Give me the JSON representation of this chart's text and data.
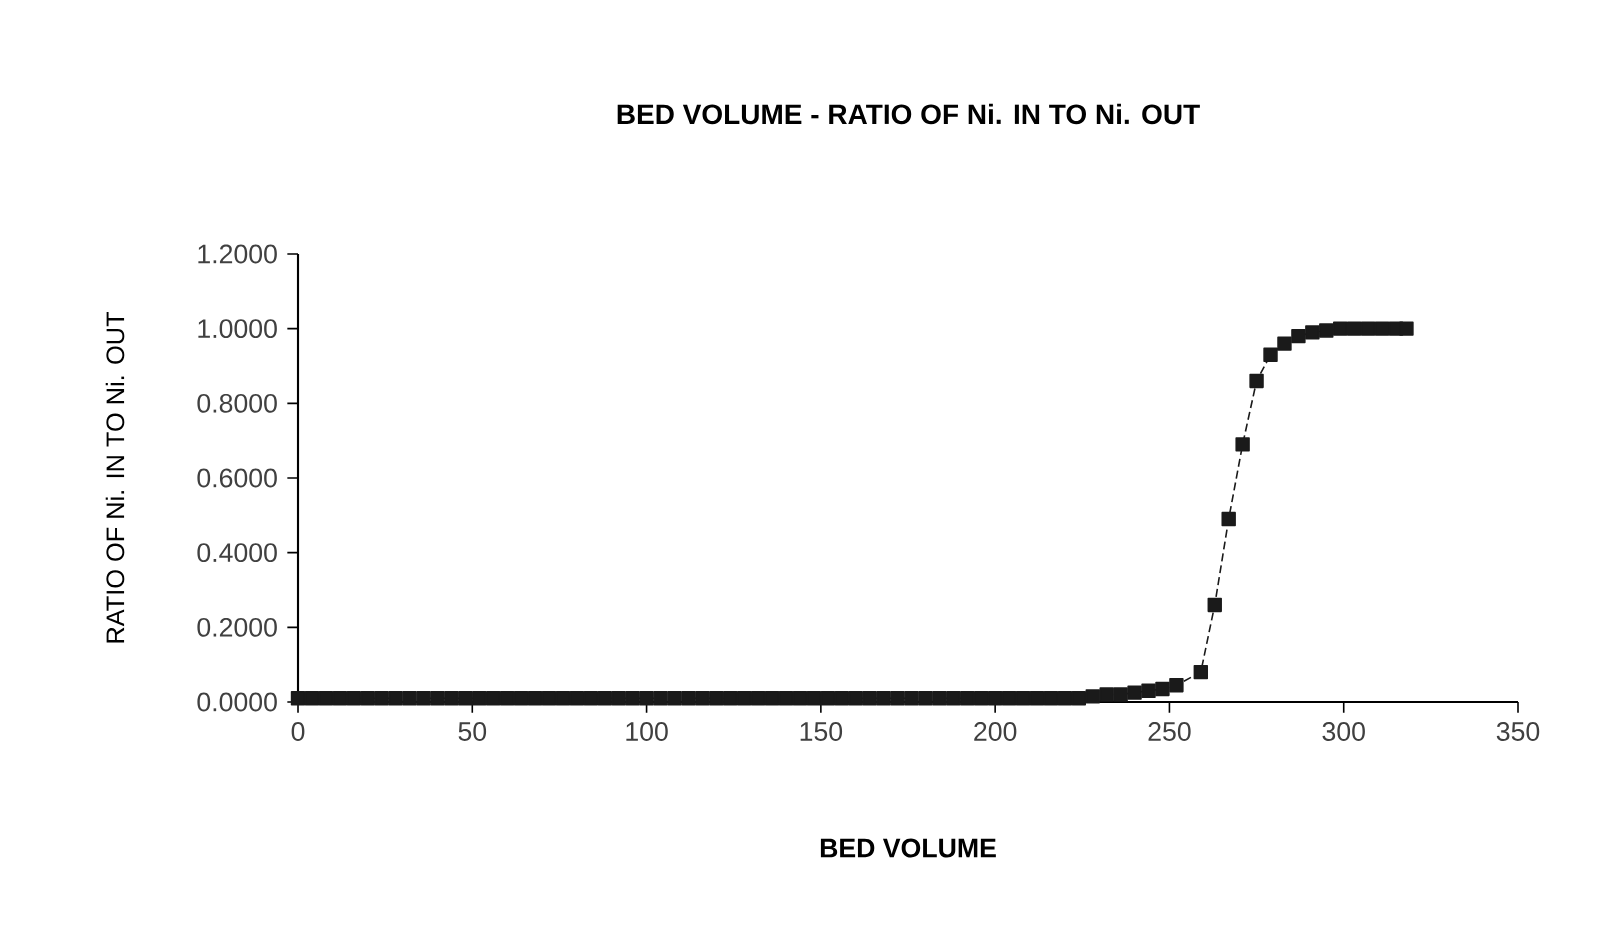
{
  "chart_data": {
    "type": "line",
    "title": "BED VOLUME - RATIO  OF  Ni.  IN TO Ni. OUT",
    "xlabel": "BED VOLUME",
    "ylabel": "RATIO OF Ni. IN TO Ni. OUT",
    "xlim": [
      0,
      350
    ],
    "ylim": [
      0,
      1.2
    ],
    "xticks": [
      0,
      50,
      100,
      150,
      200,
      250,
      300,
      350
    ],
    "yticks": [
      {
        "value": 0,
        "label": "0.0000"
      },
      {
        "value": 0.2,
        "label": "0.2000"
      },
      {
        "value": 0.4,
        "label": "0.4000"
      },
      {
        "value": 0.6,
        "label": "0.6000"
      },
      {
        "value": 0.8,
        "label": "0.8000"
      },
      {
        "value": 1.0,
        "label": "1.0000"
      },
      {
        "value": 1.2,
        "label": "1.2000"
      }
    ],
    "grid": false,
    "marker": "square",
    "line_style": "dashed",
    "series": [
      {
        "color": "#1a1a1a",
        "x": [
          0,
          4,
          8,
          12,
          16,
          20,
          24,
          28,
          32,
          36,
          40,
          44,
          48,
          52,
          56,
          60,
          64,
          68,
          72,
          76,
          80,
          84,
          88,
          92,
          96,
          100,
          104,
          108,
          112,
          116,
          120,
          124,
          128,
          132,
          136,
          140,
          144,
          148,
          152,
          156,
          160,
          164,
          168,
          172,
          176,
          180,
          184,
          188,
          192,
          196,
          200,
          204,
          208,
          212,
          216,
          220,
          224,
          228,
          232,
          236,
          240,
          244,
          248,
          252,
          259,
          263,
          267,
          271,
          275,
          279,
          283,
          287,
          291,
          295,
          299,
          303,
          307,
          311,
          315,
          318
        ],
        "values": [
          0.01,
          0.01,
          0.01,
          0.01,
          0.01,
          0.01,
          0.01,
          0.01,
          0.01,
          0.01,
          0.01,
          0.01,
          0.01,
          0.01,
          0.01,
          0.01,
          0.01,
          0.01,
          0.01,
          0.01,
          0.01,
          0.01,
          0.01,
          0.01,
          0.01,
          0.01,
          0.01,
          0.01,
          0.01,
          0.01,
          0.01,
          0.01,
          0.01,
          0.01,
          0.01,
          0.01,
          0.01,
          0.01,
          0.01,
          0.01,
          0.01,
          0.01,
          0.01,
          0.01,
          0.01,
          0.01,
          0.01,
          0.01,
          0.01,
          0.01,
          0.01,
          0.01,
          0.01,
          0.01,
          0.01,
          0.01,
          0.01,
          0.015,
          0.02,
          0.02,
          0.025,
          0.03,
          0.035,
          0.045,
          0.08,
          0.26,
          0.49,
          0.69,
          0.86,
          0.93,
          0.96,
          0.98,
          0.99,
          0.995,
          1.0,
          1.0,
          1.0,
          1.0,
          1.0,
          1.0
        ]
      }
    ]
  }
}
